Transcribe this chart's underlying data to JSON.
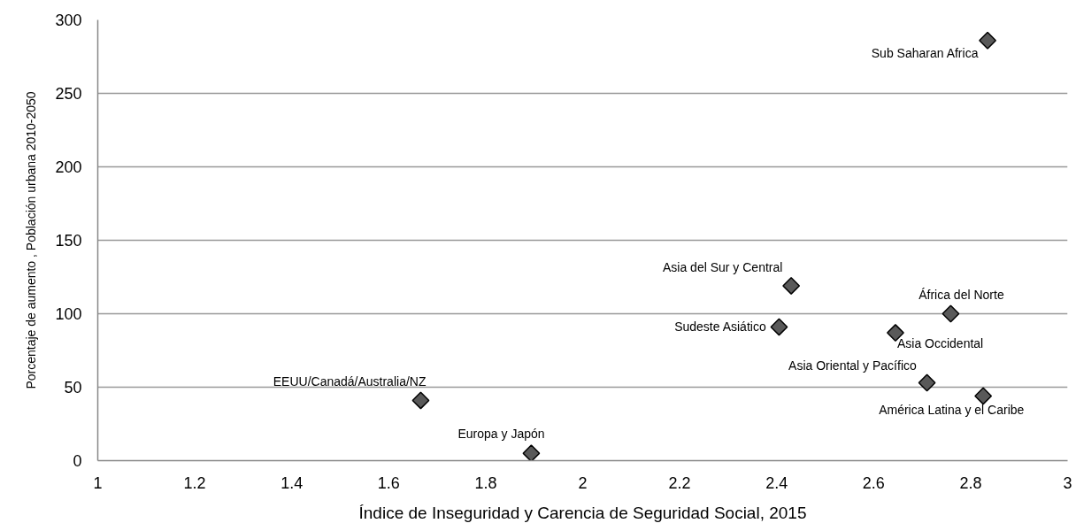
{
  "chart_data": {
    "type": "scatter",
    "xlabel": "Índice de Inseguridad y Carencia de Seguridad Social, 2015",
    "ylabel": "Porcentaje de aumento , Población urbana 2010-2050",
    "x": [
      1.666,
      1.894,
      2.405,
      2.43,
      2.645,
      2.71,
      2.759,
      2.826,
      2.835
    ],
    "series": [
      {
        "color": "#595959",
        "values": [
          41,
          5,
          91,
          119,
          87,
          53,
          100,
          44,
          286
        ]
      }
    ],
    "marker": "diamond",
    "grid": "y",
    "xlim": [
      1,
      3
    ],
    "xticks": [
      1,
      1.2,
      1.4,
      1.6,
      1.8,
      2,
      2.2,
      2.4,
      2.6,
      2.8,
      3
    ],
    "ylim": [
      0,
      300
    ],
    "yticks": [
      0,
      50,
      100,
      150,
      200,
      250,
      300
    ],
    "annotations": [
      {
        "text": "EEUU/Canadá/Australia/NZ",
        "x": 1.666,
        "y": 41
      },
      {
        "text": "Europa  y  Japón",
        "x": 1.894,
        "y": 5
      },
      {
        "text": "Sudeste Asiático",
        "x": 2.405,
        "y": 91
      },
      {
        "text": "Asia del  Sur  y Central",
        "x": 2.43,
        "y": 119
      },
      {
        "text": "Asia Occidental",
        "x": 2.645,
        "y": 87
      },
      {
        "text": "Asia Oriental  y  Pacífico",
        "x": 2.71,
        "y": 53
      },
      {
        "text": "África del Norte",
        "x": 2.759,
        "y": 100
      },
      {
        "text": "América Latina  y el  Caribe",
        "x": 2.826,
        "y": 44
      },
      {
        "text": "Sub Saharan  Africa",
        "x": 2.835,
        "y": 286
      }
    ]
  }
}
